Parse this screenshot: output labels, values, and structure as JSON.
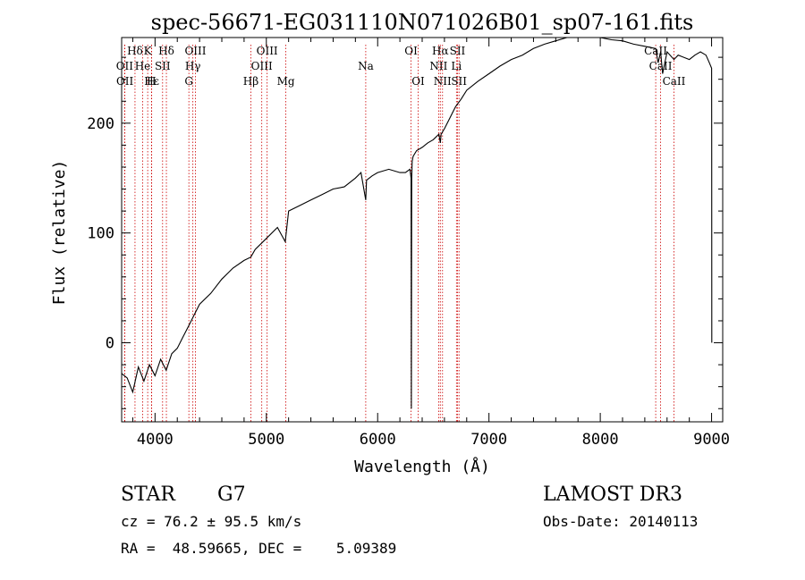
{
  "chart_data": {
    "type": "line",
    "title": "spec-56671-EG031110N071026B01_sp07-161.fits",
    "xlabel": "Wavelength (Å)",
    "ylabel": "Flux (relative)",
    "xlim": [
      3700,
      9100
    ],
    "ylim": [
      -72,
      278
    ],
    "x_ticks": [
      4000,
      5000,
      6000,
      7000,
      8000,
      9000
    ],
    "y_ticks": [
      0,
      100,
      200
    ],
    "grid": false,
    "series": [
      {
        "name": "spectrum",
        "x": [
          3700,
          3750,
          3800,
          3850,
          3900,
          3950,
          4000,
          4050,
          4100,
          4150,
          4200,
          4250,
          4300,
          4350,
          4400,
          4500,
          4600,
          4700,
          4800,
          4860,
          4900,
          5000,
          5100,
          5170,
          5200,
          5300,
          5400,
          5500,
          5600,
          5700,
          5800,
          5850,
          5893,
          5900,
          5950,
          6000,
          6100,
          6200,
          6250,
          6290,
          6300,
          6303,
          6306,
          6310,
          6315,
          6320,
          6350,
          6400,
          6450,
          6500,
          6550,
          6563,
          6570,
          6600,
          6650,
          6700,
          6750,
          6800,
          6900,
          7000,
          7100,
          7200,
          7300,
          7400,
          7500,
          7600,
          7700,
          7800,
          7900,
          8000,
          8100,
          8200,
          8300,
          8400,
          8498,
          8520,
          8542,
          8560,
          8600,
          8662,
          8700,
          8800,
          8850,
          8900,
          8950,
          8980,
          9000,
          9001,
          9002
        ],
        "values": [
          -28,
          -32,
          -45,
          -22,
          -35,
          -20,
          -30,
          -15,
          -25,
          -10,
          -5,
          5,
          15,
          25,
          35,
          45,
          58,
          68,
          75,
          78,
          85,
          95,
          105,
          92,
          120,
          125,
          130,
          135,
          140,
          142,
          150,
          155,
          130,
          148,
          152,
          155,
          158,
          155,
          155,
          158,
          150,
          -60,
          150,
          165,
          168,
          170,
          175,
          178,
          182,
          185,
          190,
          182,
          190,
          195,
          205,
          215,
          222,
          230,
          238,
          245,
          252,
          258,
          262,
          268,
          272,
          275,
          280,
          282,
          280,
          278,
          276,
          275,
          272,
          270,
          268,
          255,
          265,
          245,
          265,
          258,
          262,
          258,
          262,
          265,
          262,
          255,
          250,
          190,
          0
        ]
      }
    ],
    "line_markers": [
      {
        "label": "Hδ",
        "x": 3820,
        "row": 1
      },
      {
        "label": "K",
        "x": 3934,
        "row": 1
      },
      {
        "label": "Hδ",
        "x": 4102,
        "row": 1
      },
      {
        "label": "OIII",
        "x": 4363,
        "row": 1
      },
      {
        "label": "OIII",
        "x": 5007,
        "row": 1
      },
      {
        "label": "OI",
        "x": 6300,
        "row": 1
      },
      {
        "label": "Hα",
        "x": 6563,
        "row": 1
      },
      {
        "label": "SII",
        "x": 6717,
        "row": 1
      },
      {
        "label": "CaII",
        "x": 8498,
        "row": 1
      },
      {
        "label": "OII",
        "x": 3727,
        "row": 2
      },
      {
        "label": "He",
        "x": 3889,
        "row": 2
      },
      {
        "label": "SII",
        "x": 4068,
        "row": 2
      },
      {
        "label": "Hγ",
        "x": 4340,
        "row": 2
      },
      {
        "label": "OIII",
        "x": 4959,
        "row": 2
      },
      {
        "label": "Na",
        "x": 5893,
        "row": 2
      },
      {
        "label": "NII",
        "x": 6548,
        "row": 2
      },
      {
        "label": "Li",
        "x": 6708,
        "row": 2
      },
      {
        "label": "CaII",
        "x": 8542,
        "row": 2
      },
      {
        "label": "OII",
        "x": 3729,
        "row": 3
      },
      {
        "label": "Hε",
        "x": 3970,
        "row": 3
      },
      {
        "label": "H",
        "x": 3968,
        "row": 3
      },
      {
        "label": "G",
        "x": 4304,
        "row": 3
      },
      {
        "label": "Hβ",
        "x": 4861,
        "row": 3
      },
      {
        "label": "Mg",
        "x": 5175,
        "row": 3
      },
      {
        "label": "OI",
        "x": 6364,
        "row": 3
      },
      {
        "label": "NII",
        "x": 6583,
        "row": 3
      },
      {
        "label": "SII",
        "x": 6731,
        "row": 3
      },
      {
        "label": "CaII",
        "x": 8662,
        "row": 3
      }
    ]
  },
  "info": {
    "object_class": "STAR",
    "subclass": "G7",
    "survey": "LAMOST DR3",
    "cz": "cz = 76.2 ± 95.5 km/s",
    "obs_date": "Obs-Date: 20140113",
    "radec": "RA =  48.59665, DEC =    5.09389"
  },
  "colors": {
    "spectrum": "#000000",
    "marker": "#cc0000",
    "text": "#000000"
  }
}
